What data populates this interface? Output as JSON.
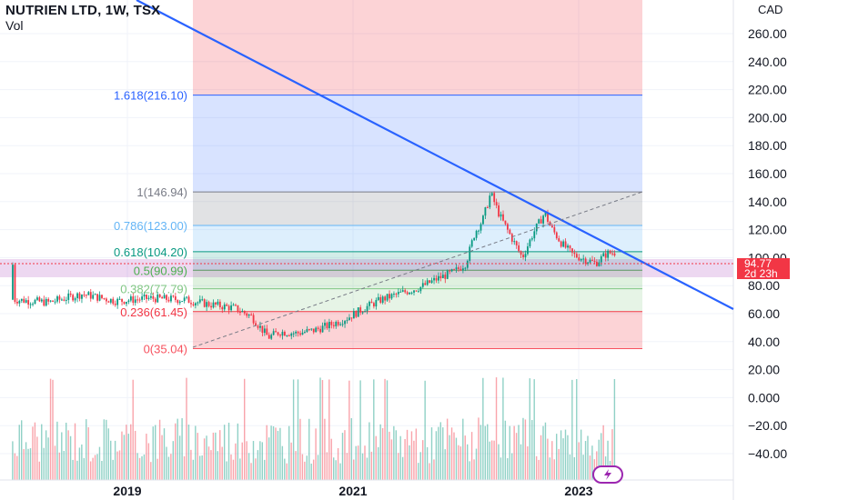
{
  "header": {
    "title": "NUTRIEN LTD, 1W, TSX",
    "volume_label": "Vol"
  },
  "price_axis": {
    "currency": "CAD",
    "ticks": [
      "260.00",
      "240.00",
      "220.00",
      "200.00",
      "180.00",
      "160.00",
      "140.00",
      "120.00",
      "100.00",
      "80.00",
      "60.00",
      "40.00",
      "20.00",
      "0.000",
      "−20.00",
      "−40.00"
    ]
  },
  "time_axis": {
    "ticks": [
      "2019",
      "2021",
      "2023"
    ]
  },
  "price_tag": {
    "price": "94.77",
    "countdown": "2d 23h"
  },
  "colors": {
    "up": "#089981",
    "down": "#f23645",
    "trendline": "#2962ff",
    "fib_0": "#f7525f",
    "fib_0236": "#f23645",
    "fib_0382": "#81c784",
    "fib_05": "#4caf50",
    "fib_0618": "#089981",
    "fib_0786": "#64b5f6",
    "fib_1": "#787b86",
    "fib_1618": "#2962ff",
    "highlight": "#9c27b0"
  },
  "icons": {
    "flash": "lightning-icon"
  },
  "chart_data": {
    "type": "candlestick",
    "title": "NUTRIEN LTD, 1W, TSX",
    "currency": "CAD",
    "ylim": [
      -50,
      280
    ],
    "x_ticks": [
      "2019",
      "2021",
      "2023"
    ],
    "grid": true,
    "fibonacci": [
      {
        "label": "0(35.04)",
        "ratio": 0,
        "price": 35.04
      },
      {
        "label": "0.236(61.45)",
        "ratio": 0.236,
        "price": 61.45
      },
      {
        "label": "0.382(77.79)",
        "ratio": 0.382,
        "price": 77.79
      },
      {
        "label": "0.5(90.99)",
        "ratio": 0.5,
        "price": 90.99
      },
      {
        "label": "0.618(104.20)",
        "ratio": 0.618,
        "price": 104.2
      },
      {
        "label": "0.786(123.00)",
        "ratio": 0.786,
        "price": 123.0
      },
      {
        "label": "1(146.94)",
        "ratio": 1,
        "price": 146.94
      },
      {
        "label": "1.618(216.10)",
        "ratio": 1.618,
        "price": 216.1
      }
    ],
    "last_price": 94.77,
    "bar_countdown": "2d 23h",
    "price_series": [
      [
        2018.0,
        70
      ],
      [
        2018.3,
        68
      ],
      [
        2018.6,
        74
      ],
      [
        2018.9,
        69
      ],
      [
        2019.2,
        71
      ],
      [
        2019.5,
        70
      ],
      [
        2019.7,
        67
      ],
      [
        2019.95,
        64
      ],
      [
        2020.1,
        58
      ],
      [
        2020.25,
        43
      ],
      [
        2020.35,
        47
      ],
      [
        2020.5,
        46
      ],
      [
        2020.65,
        48
      ],
      [
        2020.8,
        52
      ],
      [
        2020.95,
        57
      ],
      [
        2021.1,
        64
      ],
      [
        2021.25,
        70
      ],
      [
        2021.4,
        74
      ],
      [
        2021.6,
        79
      ],
      [
        2021.75,
        85
      ],
      [
        2021.9,
        90
      ],
      [
        2022.0,
        96
      ],
      [
        2022.08,
        118
      ],
      [
        2022.15,
        127
      ],
      [
        2022.22,
        146
      ],
      [
        2022.3,
        130
      ],
      [
        2022.4,
        115
      ],
      [
        2022.5,
        100
      ],
      [
        2022.6,
        118
      ],
      [
        2022.7,
        132
      ],
      [
        2022.75,
        122
      ],
      [
        2022.85,
        110
      ],
      [
        2022.95,
        102
      ],
      [
        2023.05,
        99
      ],
      [
        2023.15,
        96
      ],
      [
        2023.25,
        103
      ],
      [
        2023.35,
        104
      ],
      [
        2023.45,
        99
      ],
      [
        2023.55,
        96
      ],
      [
        2023.6,
        95
      ]
    ],
    "volume": {
      "ylim": [
        -45,
        25
      ],
      "note": "weekly volume bars, unlabeled scale"
    }
  }
}
